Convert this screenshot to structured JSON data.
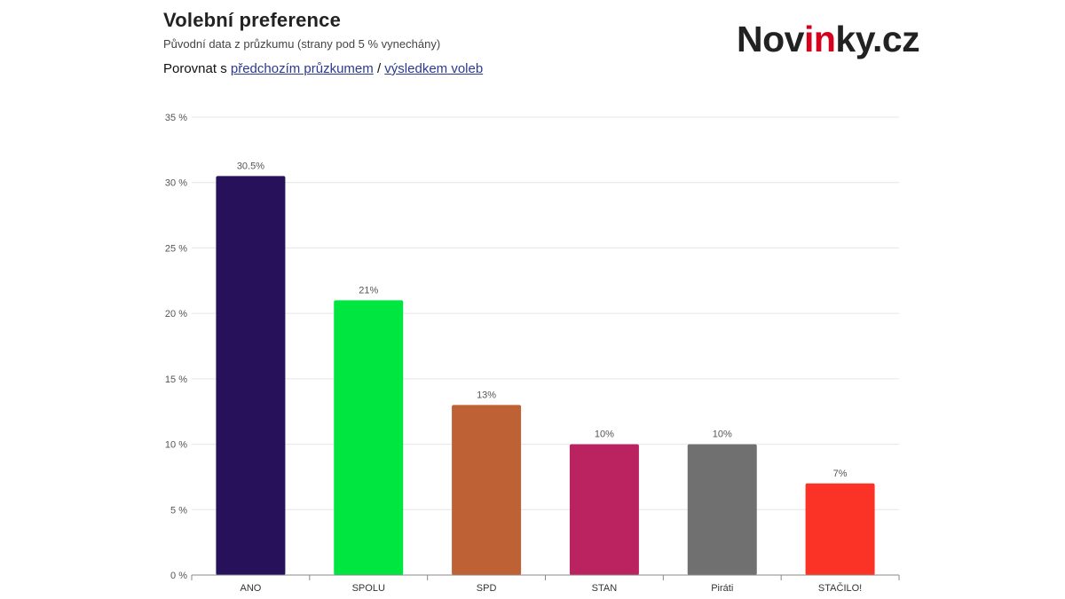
{
  "header": {
    "title": "Volební preference",
    "subtitle": "Původní data z průzkumu (strany pod 5 % vynechány)",
    "compare_prefix": "Porovnat s ",
    "link_previous": "předchozím průzkumem",
    "separator": " / ",
    "link_election": "výsledkem voleb"
  },
  "logo": {
    "part1": "Nov",
    "part2": "in",
    "part3": "ky.cz",
    "accent_color": "#d6001c"
  },
  "chart_data": {
    "type": "bar",
    "categories": [
      "ANO",
      "SPOLU",
      "SPD",
      "STAN",
      "Piráti",
      "STAČILO!"
    ],
    "values": [
      30.5,
      21,
      13,
      10,
      10,
      7
    ],
    "value_labels": [
      "30.5%",
      "21%",
      "13%",
      "10%",
      "10%",
      "7%"
    ],
    "colors": [
      "#26115a",
      "#00e640",
      "#be6236",
      "#bb2360",
      "#707070",
      "#fb3226"
    ],
    "yticks": [
      0,
      5,
      10,
      15,
      20,
      25,
      30,
      35
    ],
    "ytick_labels": [
      "0 %",
      "5 %",
      "10 %",
      "15 %",
      "20 %",
      "25 %",
      "30 %",
      "35 %"
    ],
    "ylim": [
      0,
      35
    ],
    "grid": true,
    "legend": "none"
  }
}
